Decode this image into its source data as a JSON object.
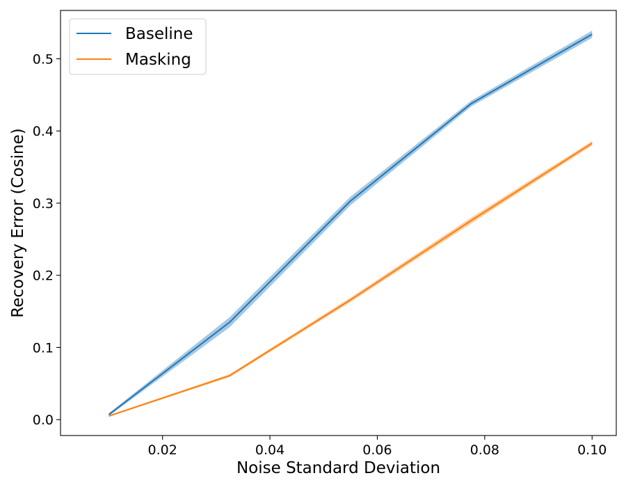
{
  "chart_data": {
    "type": "line",
    "title": "",
    "xlabel": "Noise Standard Deviation",
    "ylabel": "Recovery Error (Cosine)",
    "xlim": [
      0.001,
      0.1045
    ],
    "ylim": [
      -0.022,
      0.567
    ],
    "xticks": [
      0.02,
      0.04,
      0.06,
      0.08,
      0.1
    ],
    "xtick_labels": [
      "0.02",
      "0.04",
      "0.06",
      "0.08",
      "0.10"
    ],
    "yticks": [
      0.0,
      0.1,
      0.2,
      0.3,
      0.4,
      0.5
    ],
    "ytick_labels": [
      "0.0",
      "0.1",
      "0.2",
      "0.3",
      "0.4",
      "0.5"
    ],
    "grid": false,
    "legend_position": "top-left",
    "x": [
      0.01,
      0.0325,
      0.055,
      0.0775,
      0.1
    ],
    "series": [
      {
        "name": "Baseline",
        "values": [
          0.007,
          0.135,
          0.303,
          0.438,
          0.534
        ],
        "band": [
          0.002,
          0.007,
          0.006,
          0.004,
          0.005
        ],
        "color": "#1f77b4",
        "band_color": "#a6c8e4"
      },
      {
        "name": "Masking",
        "values": [
          0.005,
          0.061,
          0.166,
          0.276,
          0.383
        ],
        "band": [
          0.001,
          0.002,
          0.003,
          0.004,
          0.003
        ],
        "color": "#ff7f0e",
        "band_color": "#ffcc9e"
      }
    ]
  }
}
